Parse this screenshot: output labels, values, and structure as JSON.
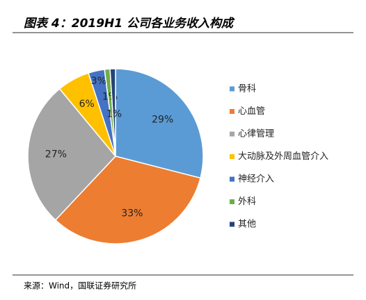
{
  "chart_data": {
    "type": "pie",
    "title": "图表 4：2019H1 公司各业务收入构成",
    "categories": [
      "骨科",
      "心血管",
      "心律管理",
      "大动脉及外周血管介入",
      "神经介入",
      "外科",
      "其他"
    ],
    "values": [
      29,
      33,
      27,
      6,
      3,
      1,
      1
    ],
    "value_labels": [
      "29%",
      "33%",
      "27%",
      "6%",
      "3%",
      "1%",
      "1%"
    ],
    "colors": [
      "#5b9bd5",
      "#ed7d31",
      "#a5a5a5",
      "#ffc000",
      "#4472c4",
      "#70ad47",
      "#264478"
    ],
    "legend": "right",
    "source": "来源：Wind，国联证券研究所"
  }
}
